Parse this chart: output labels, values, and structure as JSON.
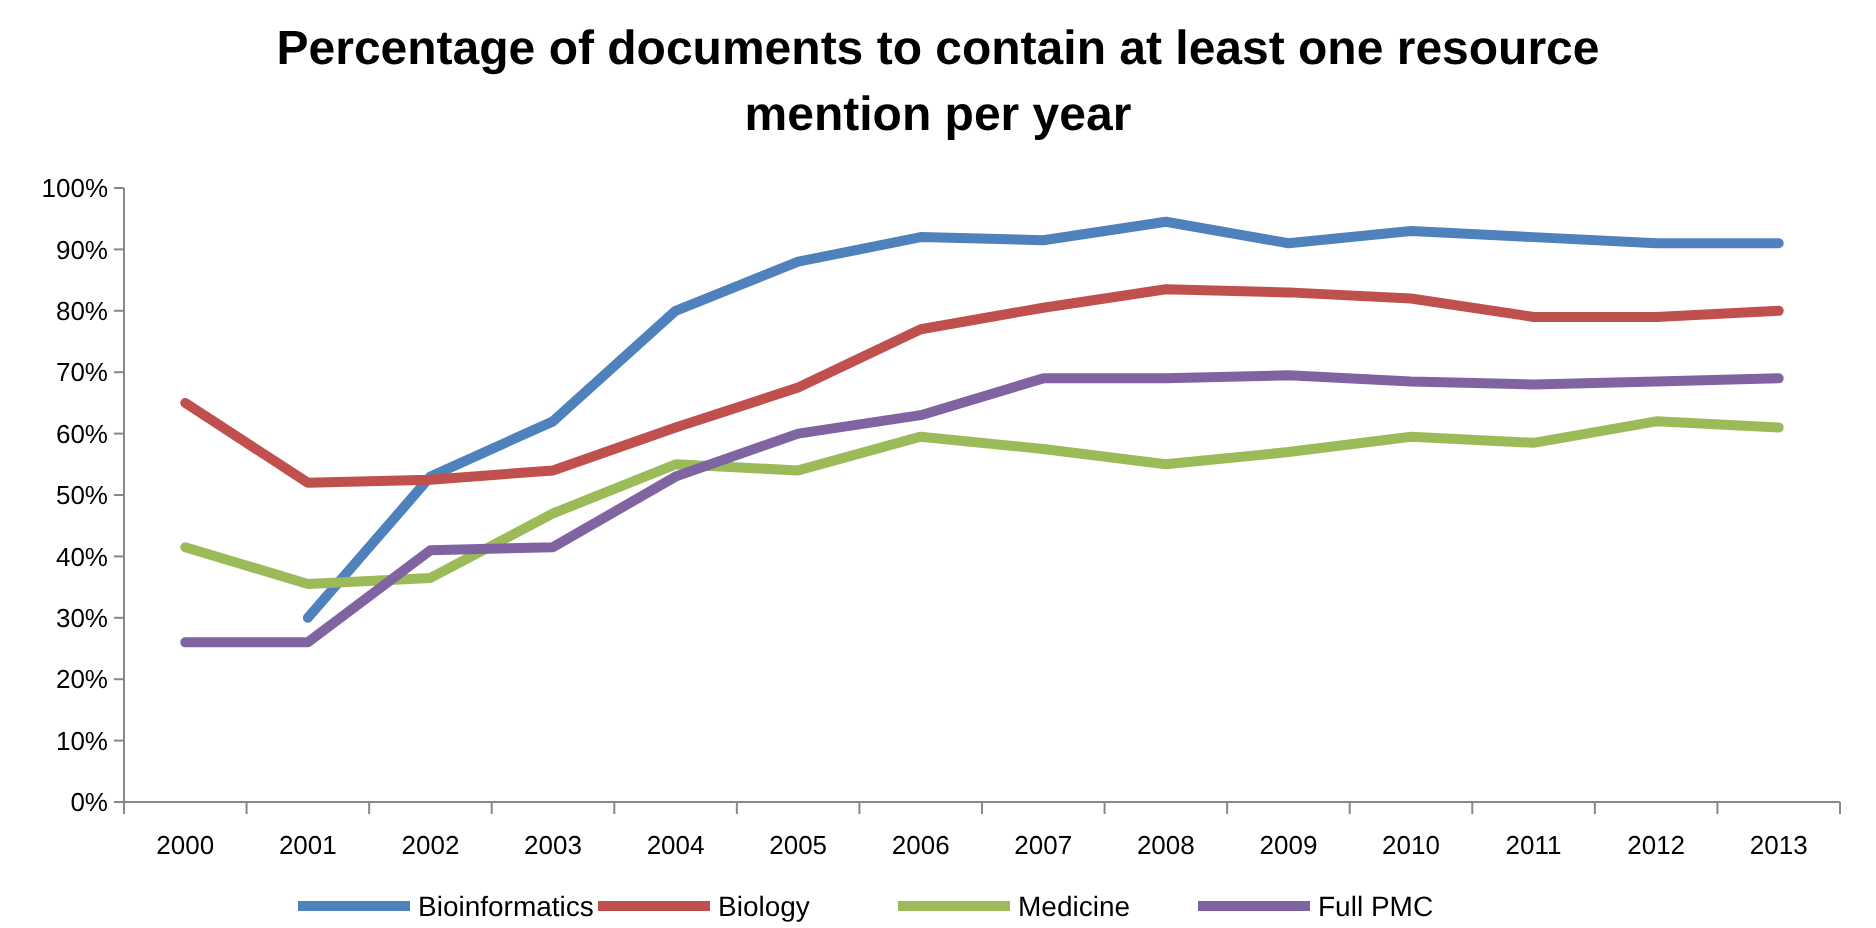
{
  "chart_data": {
    "type": "line",
    "title": "Percentage of documents to contain at least one resource mention per year",
    "categories": [
      "2000",
      "2001",
      "2002",
      "2003",
      "2004",
      "2005",
      "2006",
      "2007",
      "2008",
      "2009",
      "2010",
      "2011",
      "2012",
      "2013"
    ],
    "series": [
      {
        "name": "Bioinformatics",
        "color": "#4f81bd",
        "values": [
          null,
          30,
          53,
          62,
          80,
          88,
          92,
          91.5,
          94.5,
          91,
          93,
          92,
          91,
          91
        ]
      },
      {
        "name": "Biology",
        "color": "#c0504d",
        "values": [
          65,
          52,
          52.5,
          54,
          61,
          67.5,
          77,
          80.5,
          83.5,
          83,
          82,
          79,
          79,
          80
        ]
      },
      {
        "name": "Medicine",
        "color": "#9bbb59",
        "values": [
          41.5,
          35.5,
          36.5,
          47,
          55,
          54,
          59.5,
          57.5,
          55,
          57,
          59.5,
          58.5,
          62,
          61
        ]
      },
      {
        "name": "Full PMC",
        "color": "#8064a2",
        "values": [
          26,
          26,
          41,
          41.5,
          53,
          60,
          63,
          69,
          69,
          69.5,
          68.5,
          68,
          68.5,
          69
        ]
      }
    ],
    "ylim": [
      0,
      100
    ],
    "yticks": [
      {
        "value": 0,
        "label": "0%"
      },
      {
        "value": 10,
        "label": "10%"
      },
      {
        "value": 20,
        "label": "20%"
      },
      {
        "value": 30,
        "label": "30%"
      },
      {
        "value": 40,
        "label": "40%"
      },
      {
        "value": 50,
        "label": "50%"
      },
      {
        "value": 60,
        "label": "60%"
      },
      {
        "value": 70,
        "label": "70%"
      },
      {
        "value": 80,
        "label": "80%"
      },
      {
        "value": 90,
        "label": "90%"
      },
      {
        "value": 100,
        "label": "100%"
      }
    ],
    "grid": false,
    "legend": "bottom",
    "marker": "none",
    "line_style": "solid"
  }
}
